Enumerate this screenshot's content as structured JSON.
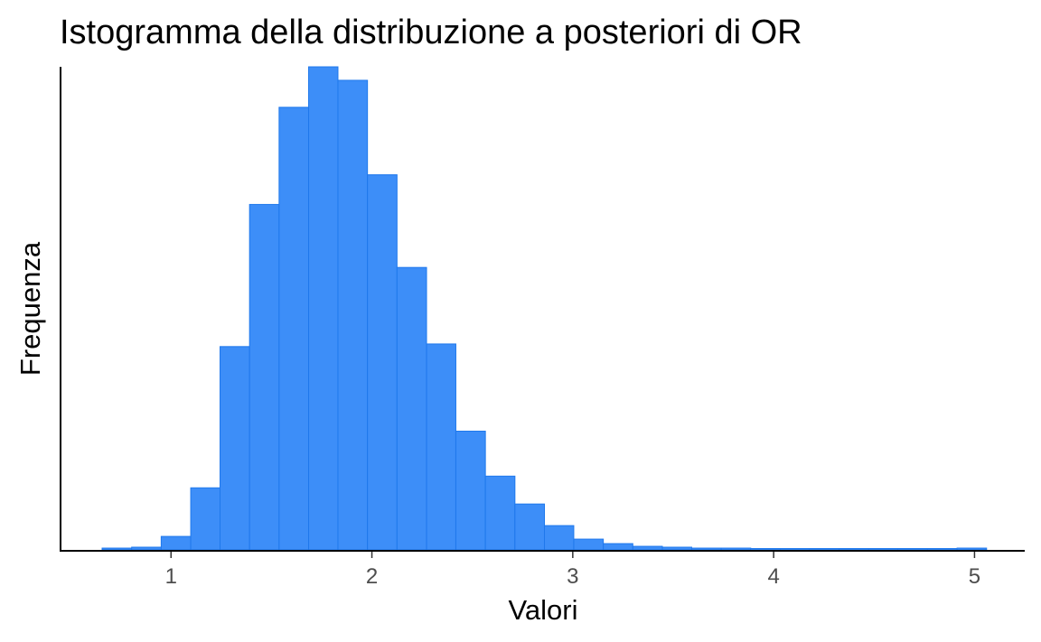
{
  "chart_data": {
    "type": "bar",
    "title": "Istogramma della distribuzione a posteriori di OR",
    "xlabel": "Valori",
    "ylabel": "Frequenza",
    "xlim": [
      0.45,
      5.25
    ],
    "ylim": [
      0,
      1.0
    ],
    "xticks": [
      1,
      2,
      3,
      4,
      5
    ],
    "xtick_labels": [
      "1",
      "2",
      "3",
      "4",
      "5"
    ],
    "yticks_shown": false,
    "grid": false,
    "legend": "none",
    "bin_width": 0.1468,
    "bins": {
      "x_start": [
        0.657,
        0.804,
        0.951,
        1.098,
        1.244,
        1.391,
        1.538,
        1.685,
        1.831,
        1.978,
        2.125,
        2.272,
        2.418,
        2.565,
        2.712,
        2.859,
        3.005,
        3.152,
        3.299,
        3.446,
        3.592,
        3.739,
        3.886,
        4.033,
        4.179,
        4.326,
        4.473,
        4.62,
        4.766,
        4.913
      ],
      "x_end": [
        0.804,
        0.951,
        1.098,
        1.244,
        1.391,
        1.538,
        1.685,
        1.831,
        1.978,
        2.125,
        2.272,
        2.418,
        2.565,
        2.712,
        2.859,
        3.005,
        3.152,
        3.299,
        3.446,
        3.592,
        3.739,
        3.886,
        4.033,
        4.179,
        4.326,
        4.473,
        4.62,
        4.766,
        4.913,
        5.06
      ],
      "frequency_relative": [
        0.0037,
        0.0056,
        0.0279,
        0.1285,
        0.4209,
        0.7151,
        0.9162,
        1.0,
        0.9721,
        0.7765,
        0.5847,
        0.4263,
        0.2458,
        0.1527,
        0.095,
        0.0503,
        0.0223,
        0.013,
        0.0074,
        0.0056,
        0.0037,
        0.0037,
        0.0028,
        0.0028,
        0.0028,
        0.0028,
        0.0028,
        0.0028,
        0.0028,
        0.0037
      ]
    },
    "colors": {
      "bar_fill": "#3d8ef8",
      "bar_stroke": "#1f78ec",
      "axis": "#000000",
      "tick_label": "#4d4d4d"
    }
  }
}
